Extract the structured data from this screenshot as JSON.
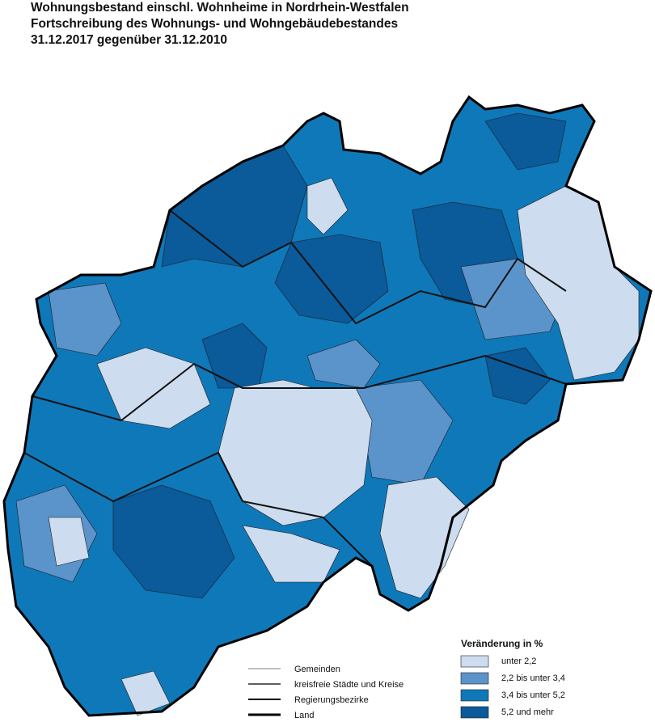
{
  "header": {
    "title_lines": [
      "Wohnungsbestand einschl. Wohnheime in Nordrhein-Westfalen",
      "Fortschreibung des Wohnungs- und Wohngebäudebestandes",
      "31.12.2017 gegenüber 31.12.2010"
    ]
  },
  "legend": {
    "title": "Veränderung in %",
    "items": [
      {
        "label": "unter 2,2",
        "color": "#cddcee"
      },
      {
        "label": "2,2 bis unter 3,4",
        "color": "#5b93cb"
      },
      {
        "label": "3,4 bis unter 5,2",
        "color": "#0f78b8"
      },
      {
        "label": "5,2 und mehr",
        "color": "#0b5a9a"
      }
    ]
  },
  "boundaries": [
    "Gemeinden",
    "kreisfreie Städte und Kreise",
    "Regierungsbezirke",
    "Land"
  ]
}
